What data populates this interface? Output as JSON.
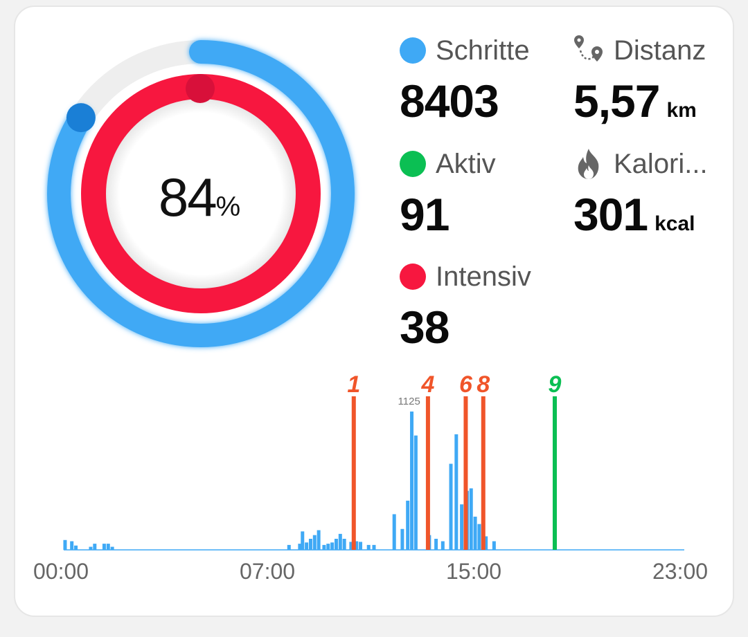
{
  "ring": {
    "percent": "84",
    "percent_sign": "%",
    "outer_fraction": 0.84,
    "inner_fraction": 1.0,
    "outer_color": "#3fa9f5",
    "inner_color": "#f7173f"
  },
  "stats": {
    "steps": {
      "label": "Schritte",
      "value": "8403",
      "unit": "",
      "color": "#3fa9f5"
    },
    "distance": {
      "label": "Distanz",
      "value": "5,57",
      "unit": "km",
      "icon": "route-pin-icon"
    },
    "active": {
      "label": "Aktiv",
      "value": "91",
      "unit": "",
      "color": "#0bbf53"
    },
    "calories": {
      "label": "Kalori...",
      "value": "301",
      "unit": "kcal",
      "icon": "flame-icon"
    },
    "intensive": {
      "label": "Intensiv",
      "value": "38",
      "unit": "",
      "color": "#f7173f"
    }
  },
  "chart_data": {
    "type": "bar",
    "xlabel": "",
    "ylabel": "",
    "x_range_hours": [
      0,
      23
    ],
    "x_ticks": [
      "00:00",
      "07:00",
      "15:00",
      "23:00"
    ],
    "bar_color": "#3fa9f5",
    "peak_label": "1125",
    "bars": [
      {
        "t": 0.05,
        "v": 80
      },
      {
        "t": 0.3,
        "v": 70
      },
      {
        "t": 0.45,
        "v": 35
      },
      {
        "t": 1.0,
        "v": 25
      },
      {
        "t": 1.15,
        "v": 50
      },
      {
        "t": 1.5,
        "v": 50
      },
      {
        "t": 1.65,
        "v": 50
      },
      {
        "t": 1.8,
        "v": 25
      },
      {
        "t": 8.35,
        "v": 40
      },
      {
        "t": 8.75,
        "v": 50
      },
      {
        "t": 8.85,
        "v": 150
      },
      {
        "t": 9.0,
        "v": 60
      },
      {
        "t": 9.15,
        "v": 90
      },
      {
        "t": 9.3,
        "v": 120
      },
      {
        "t": 9.45,
        "v": 160
      },
      {
        "t": 9.65,
        "v": 40
      },
      {
        "t": 9.8,
        "v": 50
      },
      {
        "t": 9.95,
        "v": 60
      },
      {
        "t": 10.1,
        "v": 90
      },
      {
        "t": 10.25,
        "v": 130
      },
      {
        "t": 10.4,
        "v": 90
      },
      {
        "t": 10.65,
        "v": 65
      },
      {
        "t": 10.85,
        "v": 70
      },
      {
        "t": 11.0,
        "v": 65
      },
      {
        "t": 11.3,
        "v": 40
      },
      {
        "t": 11.5,
        "v": 40
      },
      {
        "t": 12.25,
        "v": 290
      },
      {
        "t": 12.55,
        "v": 170
      },
      {
        "t": 12.75,
        "v": 400
      },
      {
        "t": 12.9,
        "v": 1125
      },
      {
        "t": 13.05,
        "v": 930
      },
      {
        "t": 13.55,
        "v": 120
      },
      {
        "t": 13.8,
        "v": 90
      },
      {
        "t": 14.05,
        "v": 70
      },
      {
        "t": 14.35,
        "v": 700
      },
      {
        "t": 14.55,
        "v": 940
      },
      {
        "t": 14.75,
        "v": 370
      },
      {
        "t": 14.95,
        "v": 480
      },
      {
        "t": 15.1,
        "v": 500
      },
      {
        "t": 15.25,
        "v": 270
      },
      {
        "t": 15.4,
        "v": 210
      },
      {
        "t": 15.65,
        "v": 110
      },
      {
        "t": 15.95,
        "v": 70
      }
    ],
    "y_max": 1125,
    "markers": [
      {
        "label": "1",
        "t": 10.75,
        "color": "#f0552a"
      },
      {
        "label": "4",
        "t": 13.5,
        "color": "#f0552a"
      },
      {
        "label": "6",
        "t": 14.9,
        "color": "#f0552a"
      },
      {
        "label": "8",
        "t": 15.55,
        "color": "#f0552a"
      },
      {
        "label": "9",
        "t": 18.2,
        "color": "#0bbf53"
      }
    ]
  }
}
